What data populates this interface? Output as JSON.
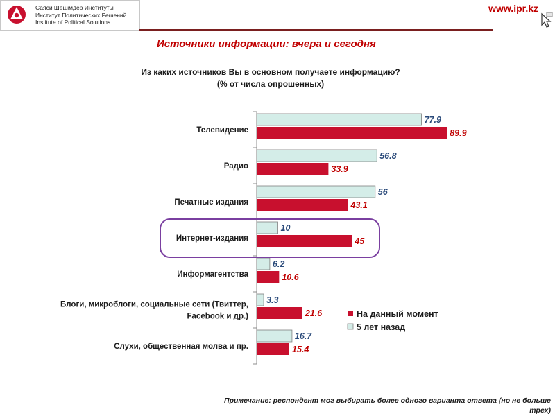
{
  "header": {
    "logo_lines": [
      "Саяси Шешімдер Институты",
      "Институт Политических Решений",
      "Institute of Political Solutions"
    ],
    "url": "www.ipr.kz"
  },
  "title": "Источники информации: вчера и сегодня",
  "question_line1": "Из каких источников Вы в основном получаете информацию?",
  "question_line2": "(% от числа опрошенных)",
  "footnote_line1": "Примечание: респондент мог выбирать более одного варианта ответа (но не больше",
  "footnote_line2": "трех)",
  "colors": {
    "accent": "#c00000",
    "current": "#c8102e",
    "past": "#d4ede8",
    "past_border": "#7f7f7f",
    "highlight": "#7a3fa0",
    "past_label": "#2a4a7a"
  },
  "chart_data": {
    "type": "bar",
    "orientation": "horizontal",
    "categories": [
      [
        "Телевидение"
      ],
      [
        "Радио"
      ],
      [
        "Печатные издания"
      ],
      [
        "Интернет-издания"
      ],
      [
        "Информагентства"
      ],
      [
        "Блоги, микроблоги, социальные сети (Твиттер,",
        "Facebook и др.)"
      ],
      [
        "Слухи, общественная молва и пр."
      ]
    ],
    "series": [
      {
        "name": "5 лет назад",
        "values": [
          77.9,
          56.8,
          56,
          10,
          6.2,
          3.3,
          16.7
        ]
      },
      {
        "name": "На данный момент",
        "values": [
          89.9,
          33.9,
          43.1,
          45,
          10.6,
          21.6,
          15.4
        ]
      }
    ],
    "xlim": [
      0,
      100
    ],
    "legend": {
      "placement": "right",
      "entries": [
        "На данный момент",
        "5 лет назад"
      ]
    },
    "highlighted_category": "Интернет-издания"
  }
}
